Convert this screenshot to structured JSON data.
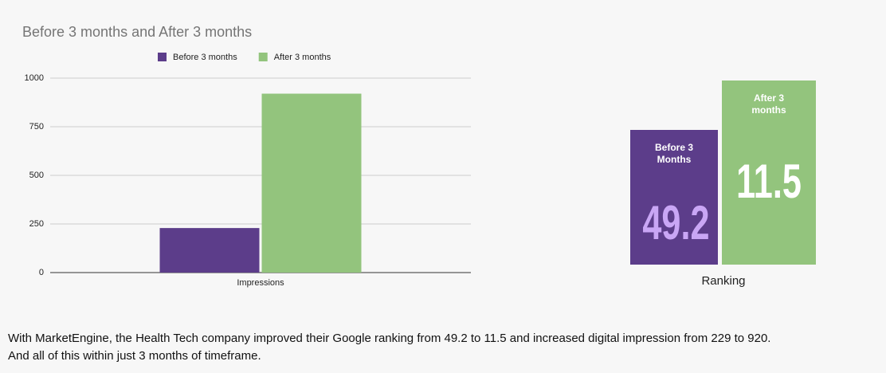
{
  "chart_data": {
    "type": "bar",
    "title": "Before 3 months and After 3 months",
    "categories": [
      "Impressions"
    ],
    "series": [
      {
        "name": "Before 3 months",
        "color": "#5c3d8a",
        "values": [
          229
        ]
      },
      {
        "name": "After 3 months",
        "color": "#93c47d",
        "values": [
          920
        ]
      }
    ],
    "ylim": [
      0,
      1000
    ],
    "yticks": [
      0,
      250,
      500,
      750,
      1000
    ],
    "grid": true,
    "legend": "top"
  },
  "ranking": {
    "label": "Ranking",
    "items": [
      {
        "label": "Before 3 Months",
        "value": 49.2,
        "color": "#5c3d8a",
        "value_color": "#c9a6f5"
      },
      {
        "label": "After 3 months",
        "value": 11.5,
        "color": "#93c47d",
        "value_color": "#ffffff"
      }
    ]
  },
  "caption": [
    "With MarketEngine, the Health Tech company improved their Google ranking from 49.2 to 11.5 and increased digital impression from 229 to 920.",
    "And all of this within just 3 months of timeframe."
  ]
}
